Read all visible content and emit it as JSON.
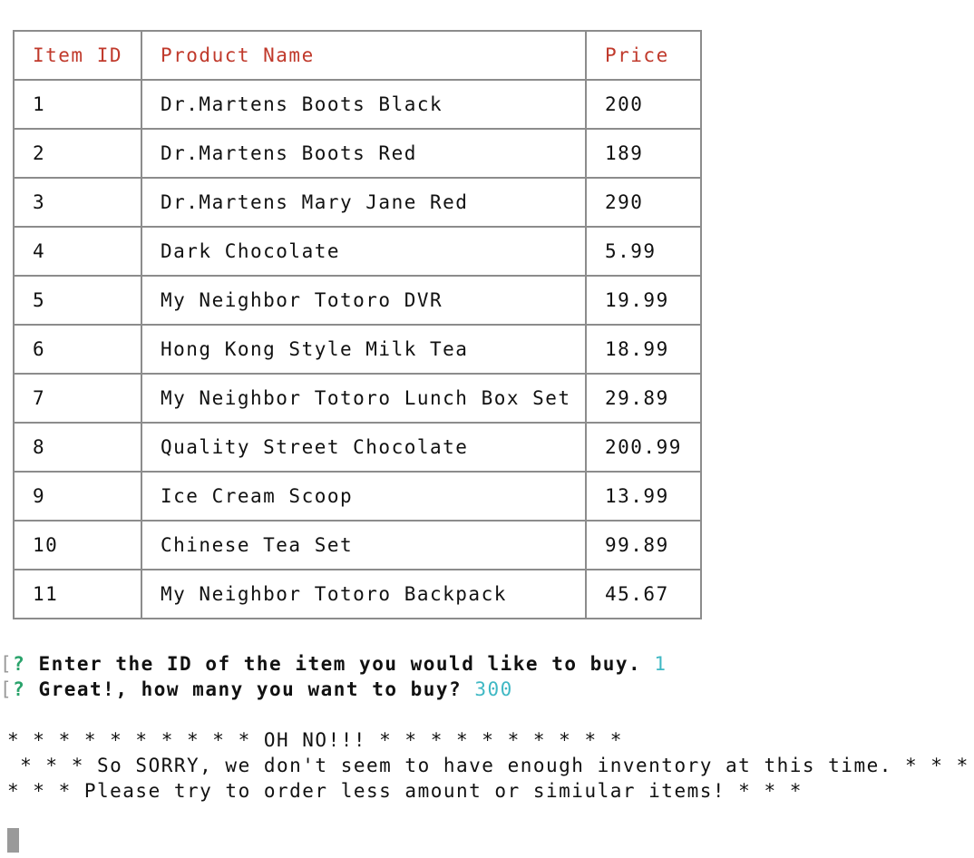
{
  "table": {
    "headers": {
      "id": "Item ID",
      "name": "Product Name",
      "price": "Price"
    },
    "rows": [
      {
        "id": "1",
        "name": "Dr.Martens Boots Black",
        "price": "200"
      },
      {
        "id": "2",
        "name": "Dr.Martens Boots Red",
        "price": "189"
      },
      {
        "id": "3",
        "name": "Dr.Martens Mary Jane Red",
        "price": "290"
      },
      {
        "id": "4",
        "name": "Dark Chocolate",
        "price": "5.99"
      },
      {
        "id": "5",
        "name": "My Neighbor Totoro DVR",
        "price": "19.99"
      },
      {
        "id": "6",
        "name": "Hong Kong Style Milk Tea",
        "price": "18.99"
      },
      {
        "id": "7",
        "name": "My Neighbor Totoro Lunch Box Set",
        "price": "29.89"
      },
      {
        "id": "8",
        "name": "Quality Street Chocolate",
        "price": "200.99"
      },
      {
        "id": "9",
        "name": "Ice Cream Scoop",
        "price": "13.99"
      },
      {
        "id": "10",
        "name": "Chinese Tea Set",
        "price": "99.89"
      },
      {
        "id": "11",
        "name": "My Neighbor Totoro Backpack",
        "price": "45.67"
      }
    ]
  },
  "prompts": [
    {
      "bracket": "[",
      "mark": "?",
      "question": "Enter the ID of the item you would like to buy.",
      "answer": "1"
    },
    {
      "bracket": "[",
      "mark": "?",
      "question": "Great!, how many you want to buy?",
      "answer": "300"
    }
  ],
  "messages": {
    "line1": "* * * * * * * * * * OH NO!!! * * * * * * * * * *",
    "line2": " * * * So SORRY, we don't seem to have enough inventory at this time. * * *",
    "line3": "* * * Please try to order less amount or simiular items! * * *"
  },
  "colors": {
    "header_text": "#c0392b",
    "question_mark": "#2aa36b",
    "answer_text": "#3fb8c4",
    "table_border": "#8c8c8c"
  }
}
